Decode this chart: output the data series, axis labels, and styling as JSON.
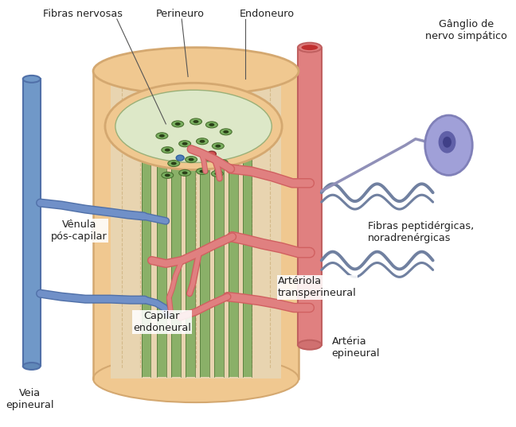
{
  "bg_color": "#ffffff",
  "title": "",
  "labels": {
    "fibras_nervosas": "Fibras nervosas",
    "perineuro": "Perineuro",
    "endoneuro": "Endoneuro",
    "ganglio": "Gânglio de\nnervo simpático",
    "fibras_peptidergicas": "Fibras peptidérgicas,\nnoradrenérgicas",
    "venula": "Vênula\npós-capilar",
    "capilar": "Capilar\nendoneural",
    "arteriola": "Artériola\ntransperineural",
    "arteria": "Artéria\nepineural",
    "veia": "Veia\nepineural"
  },
  "colors": {
    "nerve_green": "#8ab068",
    "nerve_dark": "#4a7030",
    "nerve_inner": "#2a4018",
    "artery_outer": "#d06060",
    "artery_inner": "#e08080",
    "artery_lumen": "#c03030",
    "vein_outer": "#5070a8",
    "vein_inner": "#7090c8",
    "cylinder_wall": "#d4a870",
    "epineurium": "#f0c890",
    "endoneurium": "#e8d4b0",
    "perineurium_top": "#f0c890",
    "endoneurium_top": "#dde8c8",
    "ganglio_fill": "#a0a0d8",
    "ganglio_edge": "#8080b8",
    "ganglio_nucleus": "#6060a8",
    "ganglio_inner": "#404088",
    "sympathetic": "#7080a0",
    "text_color": "#222222",
    "annotation": "#555555",
    "vein_body": "#7098c8",
    "vein_edge": "#5070a8"
  }
}
